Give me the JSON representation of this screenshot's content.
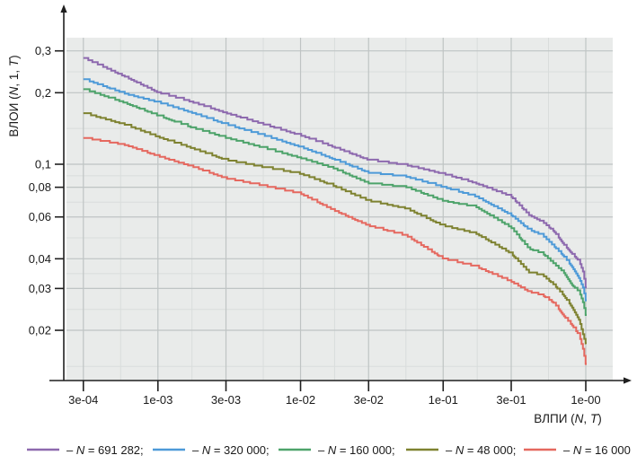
{
  "figure": {
    "background": "#ffffff"
  },
  "chart_data": {
    "type": "line",
    "title": "",
    "scale": "log-log",
    "grid": "on",
    "legend_position": "bottom",
    "colors": {
      "panel": "#e9ebea",
      "grid_major": "#bfc4c4",
      "grid_minor": "#d9dddc",
      "axis": "#1f1f1f",
      "text": "#1a1a1a"
    },
    "x_axis": {
      "title_parts": {
        "pre": "ВЛПИ (",
        "n": "N",
        "mid": ", ",
        "t": "T",
        "post": ")"
      },
      "range": [
        0.0003,
        1.0
      ],
      "ticks": [
        {
          "value": 0.0003,
          "label": "3e-04"
        },
        {
          "value": 0.001,
          "label": "1e-03"
        },
        {
          "value": 0.003,
          "label": "3e-03"
        },
        {
          "value": 0.01,
          "label": "1e-02"
        },
        {
          "value": 0.03,
          "label": "3e-02"
        },
        {
          "value": 0.1,
          "label": "1e-01"
        },
        {
          "value": 0.3,
          "label": "3e-01"
        },
        {
          "value": 1.0,
          "label": "1e-00"
        }
      ]
    },
    "y_axis": {
      "title_parts": {
        "pre": "ВЛОИ (",
        "n": "N",
        "mid": ", 1, ",
        "t": "T",
        "post": ")"
      },
      "range": [
        0.012,
        0.34
      ],
      "ticks": [
        {
          "value": 0.3,
          "label": "0,3"
        },
        {
          "value": 0.2,
          "label": "0,2"
        },
        {
          "value": 0.1,
          "label": "0,1"
        },
        {
          "value": 0.08,
          "label": "0,08"
        },
        {
          "value": 0.06,
          "label": "0,06"
        },
        {
          "value": 0.04,
          "label": "0,04"
        },
        {
          "value": 0.03,
          "label": "0,03"
        },
        {
          "value": 0.02,
          "label": "0,02"
        }
      ]
    },
    "x": [
      0.0003,
      0.0006,
      0.001,
      0.0017,
      0.003,
      0.0055,
      0.01,
      0.017,
      0.03,
      0.055,
      0.1,
      0.17,
      0.3,
      0.4,
      0.5,
      0.6,
      0.7,
      0.8,
      0.9,
      0.96,
      1.0
    ],
    "series": [
      {
        "legend": {
          "prefix": "– ",
          "variable": "N",
          "rest": " = 691 282;"
        },
        "color": "#8d69ae",
        "values": [
          0.28,
          0.232,
          0.2,
          0.183,
          0.164,
          0.147,
          0.132,
          0.118,
          0.104,
          0.099,
          0.091,
          0.083,
          0.073,
          0.061,
          0.057,
          0.052,
          0.046,
          0.042,
          0.039,
          0.035,
          0.03
        ]
      },
      {
        "legend": {
          "prefix": "– ",
          "variable": "N",
          "rest": " = 320 000;"
        },
        "color": "#4d9ad8",
        "values": [
          0.228,
          0.197,
          0.182,
          0.165,
          0.147,
          0.132,
          0.118,
          0.105,
          0.092,
          0.0885,
          0.08,
          0.073,
          0.061,
          0.053,
          0.05,
          0.045,
          0.041,
          0.037,
          0.033,
          0.03,
          0.0265
        ]
      },
      {
        "legend": {
          "prefix": "– ",
          "variable": "N",
          "rest": " = 160 000;"
        },
        "color": "#4da36a",
        "values": [
          0.207,
          0.18,
          0.16,
          0.143,
          0.129,
          0.117,
          0.106,
          0.096,
          0.083,
          0.08,
          0.07,
          0.066,
          0.054,
          0.044,
          0.042,
          0.038,
          0.035,
          0.031,
          0.029,
          0.026,
          0.023
        ]
      },
      {
        "legend": {
          "prefix": "– ",
          "variable": "N",
          "rest": " = 48 000;"
        },
        "color": "#7e8230",
        "values": [
          0.164,
          0.146,
          0.13,
          0.117,
          0.104,
          0.097,
          0.091,
          0.081,
          0.07,
          0.065,
          0.055,
          0.051,
          0.042,
          0.035,
          0.034,
          0.031,
          0.028,
          0.025,
          0.022,
          0.019,
          0.0175
        ]
      },
      {
        "legend": {
          "prefix": "– ",
          "variable": "N",
          "rest": " = 16 000"
        },
        "color": "#e5685f",
        "values": [
          0.129,
          0.12,
          0.108,
          0.098,
          0.087,
          0.081,
          0.075,
          0.064,
          0.055,
          0.05,
          0.04,
          0.037,
          0.032,
          0.029,
          0.028,
          0.026,
          0.023,
          0.021,
          0.019,
          0.0165,
          0.0143
        ]
      }
    ]
  }
}
